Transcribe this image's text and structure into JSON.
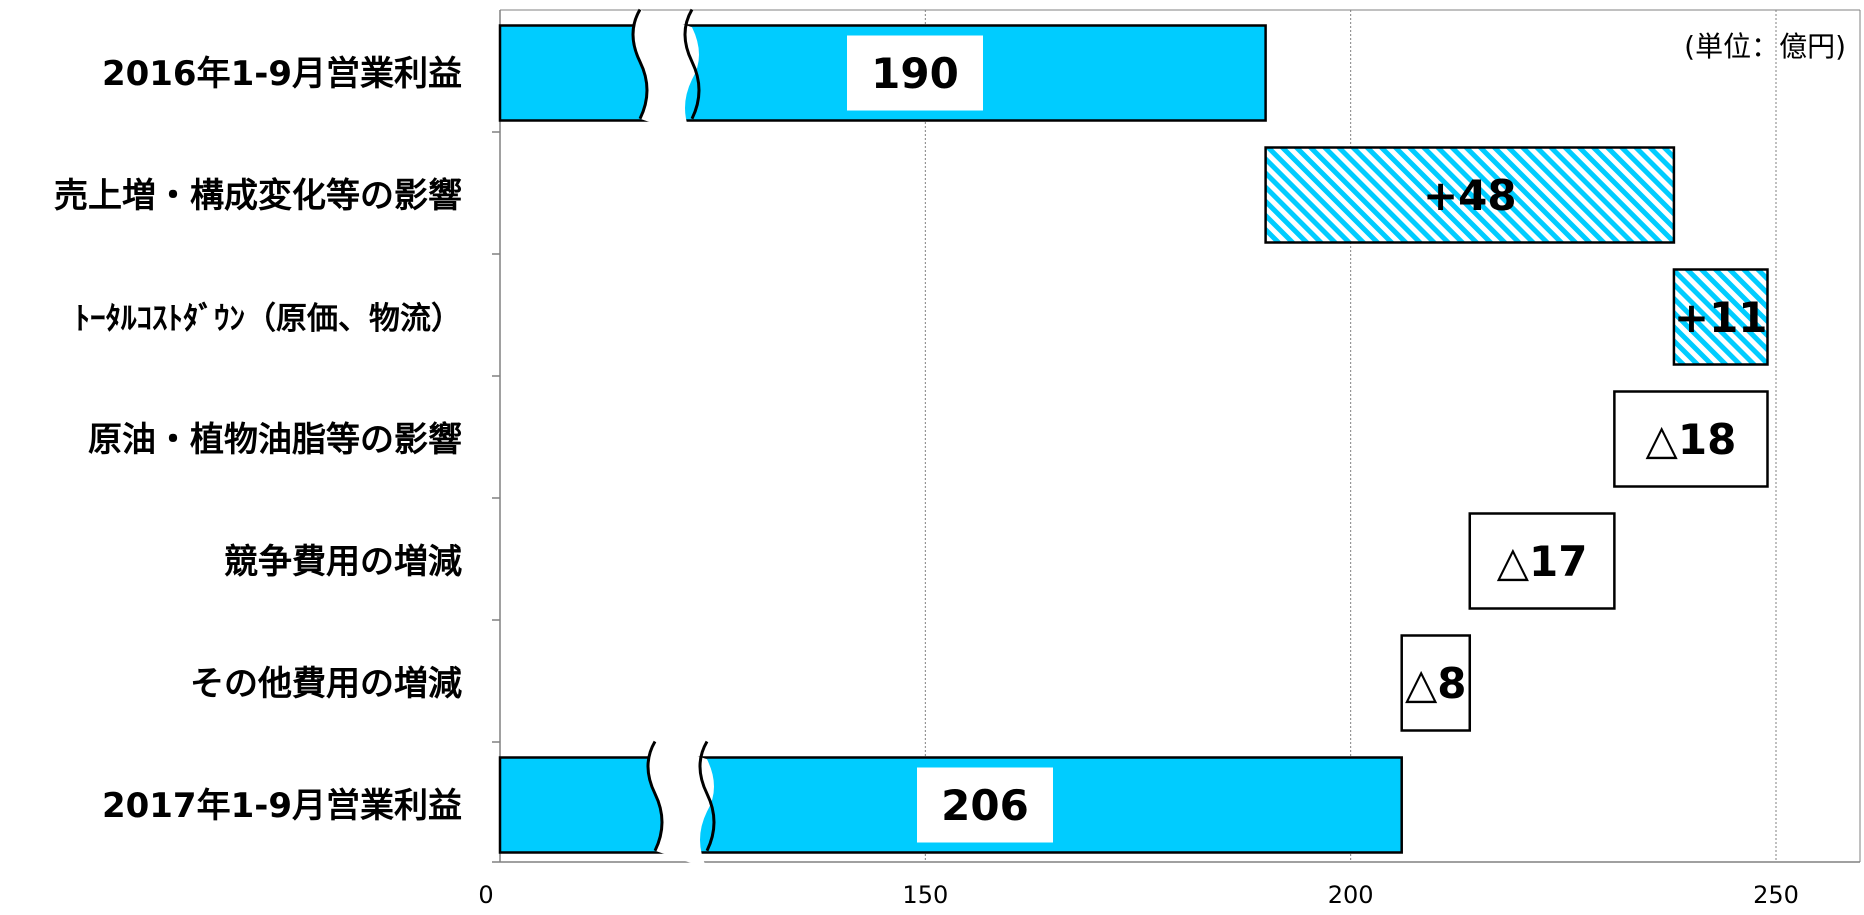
{
  "colors": {
    "bar_fill": "#00CCFF",
    "hatch_stripe": "#00CCFF",
    "outline": "#000000",
    "grid": "#808080"
  },
  "chart_data": {
    "type": "waterfall",
    "unit": "(単位：億円)",
    "axis": {
      "x_ticks": [
        0,
        150,
        200,
        250
      ],
      "axis_break": "between 0 and 150 (broken bars)",
      "grid": "vertical dotted lines at 150, 200, 250"
    },
    "bars": [
      {
        "category": "2016年1-9月営業利益",
        "kind": "total",
        "start": 0,
        "end": 190,
        "label": "190",
        "style": "solid"
      },
      {
        "category": "売上増・構成変化等の影響",
        "kind": "increase",
        "start": 190,
        "end": 238,
        "label": "+48",
        "style": "hatched"
      },
      {
        "category": "ﾄｰﾀﾙｺｽﾄﾀﾞｳﾝ（原価、物流）",
        "kind": "increase",
        "start": 238,
        "end": 249,
        "label": "+11",
        "style": "hatched"
      },
      {
        "category": "原油・植物油脂等の影響",
        "kind": "decrease",
        "start": 249,
        "end": 231,
        "label": "△18",
        "style": "outline"
      },
      {
        "category": "競争費用の増減",
        "kind": "decrease",
        "start": 231,
        "end": 214,
        "label": "△17",
        "style": "outline"
      },
      {
        "category": "その他費用の増減",
        "kind": "decrease",
        "start": 214,
        "end": 206,
        "label": "△8",
        "style": "outline"
      },
      {
        "category": "2017年1-9月営業利益",
        "kind": "total",
        "start": 0,
        "end": 206,
        "label": "206",
        "style": "solid"
      }
    ]
  }
}
